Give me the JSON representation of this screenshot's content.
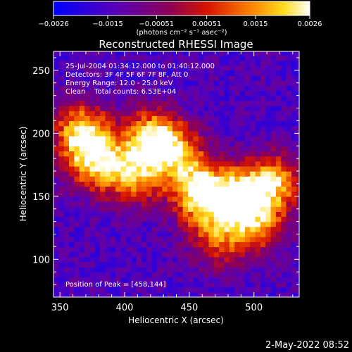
{
  "title": "Reconstructed RHESSI Image",
  "colorbar": {
    "unit_label": "(photons cm⁻² s⁻¹ asec⁻²)",
    "ticks": [
      {
        "value": -0.0026,
        "label": "−0.0026"
      },
      {
        "value": -0.0015,
        "label": "−0.0015"
      },
      {
        "value": -0.00051,
        "label": "−0.00051"
      },
      {
        "value": 0.00051,
        "label": "0.00051"
      },
      {
        "value": 0.0015,
        "label": "0.0015"
      },
      {
        "value": 0.0026,
        "label": "0.0026"
      }
    ],
    "range": [
      -0.0026,
      0.0026
    ]
  },
  "info_lines": [
    "25-Jul-2004 01:34:12.000 to 01:40:12.000",
    "Detectors: 3F 4F 5F 6F 7F 8F, Att 0",
    "Energy Range: 12.0 - 25.0 keV",
    "Clean    Total counts: 6.53E+04"
  ],
  "peak_label": "Position of Peak = [458,144]",
  "timestamp": "2-May-2022 08:52",
  "colors": {
    "background": "#000000",
    "text": "#ffffff"
  },
  "chart_data": {
    "type": "heatmap",
    "title": "Reconstructed RHESSI Image",
    "xlabel": "Heliocentric X (arcsec)",
    "ylabel": "Heliocentric Y (arcsec)",
    "xlim": [
      345,
      535
    ],
    "ylim": [
      70,
      265
    ],
    "x_ticks": [
      350,
      400,
      450,
      500
    ],
    "y_ticks": [
      100,
      150,
      200,
      250
    ],
    "colormap": "RHESSI-hot (blue-purple-red-orange-yellow-white)",
    "value_range": [
      -0.0026,
      0.0026
    ],
    "peak_position": [
      458,
      144
    ],
    "bright_regions": [
      {
        "x": 458,
        "y": 150,
        "level": 1.0
      },
      {
        "x": 420,
        "y": 195,
        "level": 0.9
      },
      {
        "x": 365,
        "y": 200,
        "level": 0.85
      },
      {
        "x": 375,
        "y": 175,
        "level": 0.75
      },
      {
        "x": 405,
        "y": 165,
        "level": 0.7
      },
      {
        "x": 490,
        "y": 150,
        "level": 0.75
      },
      {
        "x": 515,
        "y": 160,
        "level": 0.7
      },
      {
        "x": 500,
        "y": 125,
        "level": 0.6
      },
      {
        "x": 470,
        "y": 115,
        "level": 0.55
      },
      {
        "x": 440,
        "y": 180,
        "level": 0.6
      }
    ],
    "grid": false
  }
}
